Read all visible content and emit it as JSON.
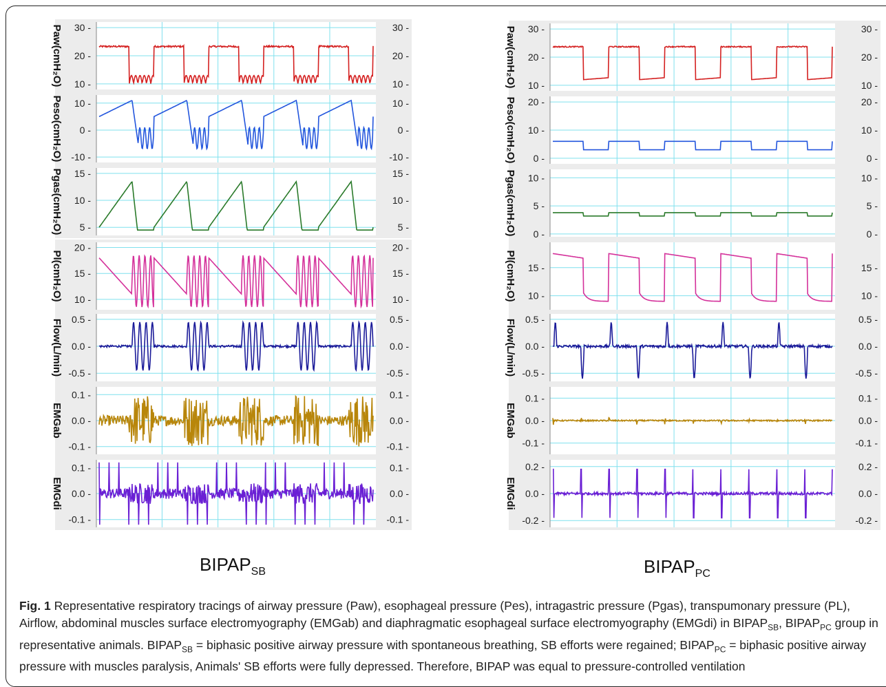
{
  "figure": {
    "left_label": {
      "base": "BIPAP",
      "sub": "SB"
    },
    "right_label": {
      "base": "BIPAP",
      "sub": "PC"
    },
    "caption": {
      "fig_label": "Fig. 1",
      "part1": "  Representative respiratory tracings of airway pressure (Paw), esophageal pressure (Pes), intragastric pressure (Pgas), transpumonary pressure (PL), Airflow, abdominal muscles surface electromyography (EMGab) and diaphragmatic esophageal surface electromyography (EMGdi) in BIPAP",
      "sub_sb": "SB",
      "part2": ", BIPAP",
      "sub_pc": "PC",
      "part3": " group in representative animals. BIPAP",
      "sub_sb2": "SB",
      "part4": " = biphasic positive airway pressure with spontaneous breathing, SB efforts were regained; BIPAP",
      "sub_pc2": "PC",
      "part5": " = biphasic positive airway pressure with muscles paralysis, Animals' SB efforts were fully depressed. Therefore, BIPAP was equal to pressure-controlled ventilation"
    }
  },
  "chart_data": [
    {
      "type": "line",
      "condition": "BIPAP_SB",
      "cycles": 5,
      "grid": true,
      "colors": {
        "Paw": "#d42020",
        "Peso": "#2255dd",
        "Pgas": "#2a7a2a",
        "Pl": "#d4309a",
        "Flow": "#1a1a99",
        "EMGab": "#b8860b",
        "EMGdi": "#6a1fd4"
      },
      "panels": [
        {
          "name": "Paw",
          "ylabel": "Paw(cmH₂O)",
          "ticks": [
            "30",
            "20",
            "10"
          ],
          "tick_values": [
            30,
            20,
            10
          ],
          "ylim": [
            8,
            32
          ],
          "pattern": {
            "high": 23,
            "low_min": 10,
            "low_max": 13
          }
        },
        {
          "name": "Peso",
          "ylabel": "Peso(cmH₂O)",
          "ticks": [
            "10",
            "0",
            "-10"
          ],
          "tick_values": [
            10,
            0,
            -10
          ],
          "ylim": [
            -12,
            13
          ],
          "pattern": {
            "ramp_start": 5,
            "ramp_end": 11,
            "dip_min": -6,
            "osc_max": 2
          }
        },
        {
          "name": "Pgas",
          "ylabel": "Pgas(cmH₂O)",
          "ticks": [
            "15",
            "10",
            "5"
          ],
          "tick_values": [
            15,
            10,
            5
          ],
          "ylim": [
            3.5,
            16
          ],
          "pattern": {
            "ramp_start": 5,
            "ramp_end": 13.5,
            "base": 4.5
          }
        },
        {
          "name": "Pl",
          "ylabel": "Pl(cmH₂O)",
          "ticks": [
            "20",
            "15",
            "10"
          ],
          "tick_values": [
            20,
            15,
            10
          ],
          "ylim": [
            8,
            21
          ],
          "pattern": {
            "ramp_start": 18,
            "ramp_end": 11,
            "osc_min": 8,
            "osc_max": 19
          }
        },
        {
          "name": "Flow",
          "ylabel": "Flow(L/min)",
          "ticks": [
            "0.5",
            "0.0",
            "-0.5"
          ],
          "tick_values": [
            0.5,
            0,
            -0.5
          ],
          "ylim": [
            -0.65,
            0.6
          ],
          "pattern": {
            "peak": 0.45,
            "trough": -0.6
          }
        },
        {
          "name": "EMGab",
          "ylabel": "EMGab",
          "ticks": [
            "0.1",
            "0.0",
            "-0.1"
          ],
          "tick_values": [
            0.1,
            0,
            -0.1
          ],
          "ylim": [
            -0.13,
            0.13
          ],
          "pattern": {
            "burst_amp": 0.1,
            "noise": 0.01
          }
        },
        {
          "name": "EMGdi",
          "ylabel": "EMGdi",
          "ticks": [
            "0.1",
            "0.0",
            "-0.1"
          ],
          "tick_values": [
            0.1,
            0,
            -0.1
          ],
          "ylim": [
            -0.13,
            0.13
          ],
          "pattern": {
            "spike_amp": 0.12,
            "spikes": 28,
            "noise": 0.02
          }
        }
      ]
    },
    {
      "type": "line",
      "condition": "BIPAP_PC",
      "cycles": 5,
      "grid": true,
      "colors": {
        "Paw": "#d42020",
        "Peso": "#2255dd",
        "Pgas": "#2a7a2a",
        "Pl": "#d4309a",
        "Flow": "#1a1a99",
        "EMGab": "#b8860b",
        "EMGdi": "#6a1fd4"
      },
      "panels": [
        {
          "name": "Paw",
          "ylabel": "Paw(cmH₂O)",
          "ticks": [
            "30",
            "20",
            "10"
          ],
          "tick_values": [
            30,
            20,
            10
          ],
          "ylim": [
            8,
            32
          ],
          "pattern": {
            "high": 23.5,
            "low": 12
          }
        },
        {
          "name": "Peso",
          "ylabel": "Peso(cmH₂O)",
          "ticks": [
            "20",
            "10",
            "0"
          ],
          "tick_values": [
            20,
            10,
            0
          ],
          "ylim": [
            -2,
            22
          ],
          "pattern": {
            "high": 6,
            "low": 3
          }
        },
        {
          "name": "Pgas",
          "ylabel": "Pgas(cmH₂O)",
          "ticks": [
            "10",
            "5",
            "0"
          ],
          "tick_values": [
            10,
            5,
            0
          ],
          "ylim": [
            -0.5,
            11.5
          ],
          "pattern": {
            "high": 3.8,
            "low": 3.2
          }
        },
        {
          "name": "Pl",
          "ylabel": "Pl(cmH₂O)",
          "ticks": [
            "15",
            "10"
          ],
          "tick_values": [
            15,
            10
          ],
          "ylim": [
            7.5,
            19.5
          ],
          "pattern": {
            "high": 17.5,
            "low": 9
          }
        },
        {
          "name": "Flow",
          "ylabel": "Flow(L/min)",
          "ticks": [
            "0.5",
            "0.0",
            "-0.5"
          ],
          "tick_values": [
            0.5,
            0,
            -0.5
          ],
          "ylim": [
            -0.65,
            0.6
          ],
          "pattern": {
            "peak": 0.45,
            "trough": -0.6
          }
        },
        {
          "name": "EMGab",
          "ylabel": "EMGab",
          "ticks": [
            "0.1",
            "0.0",
            "-0.1"
          ],
          "tick_values": [
            0.1,
            0,
            -0.1
          ],
          "ylim": [
            -0.15,
            0.15
          ],
          "pattern": {
            "spike_amp": 0.01,
            "spikes": 10
          }
        },
        {
          "name": "EMGdi",
          "ylabel": "EMGdi",
          "ticks": [
            "0.2",
            "0.0",
            "-0.2"
          ],
          "tick_values": [
            0.2,
            0,
            -0.2
          ],
          "ylim": [
            -0.25,
            0.25
          ],
          "pattern": {
            "spike_amp": 0.18,
            "spikes": 10
          }
        }
      ]
    }
  ]
}
